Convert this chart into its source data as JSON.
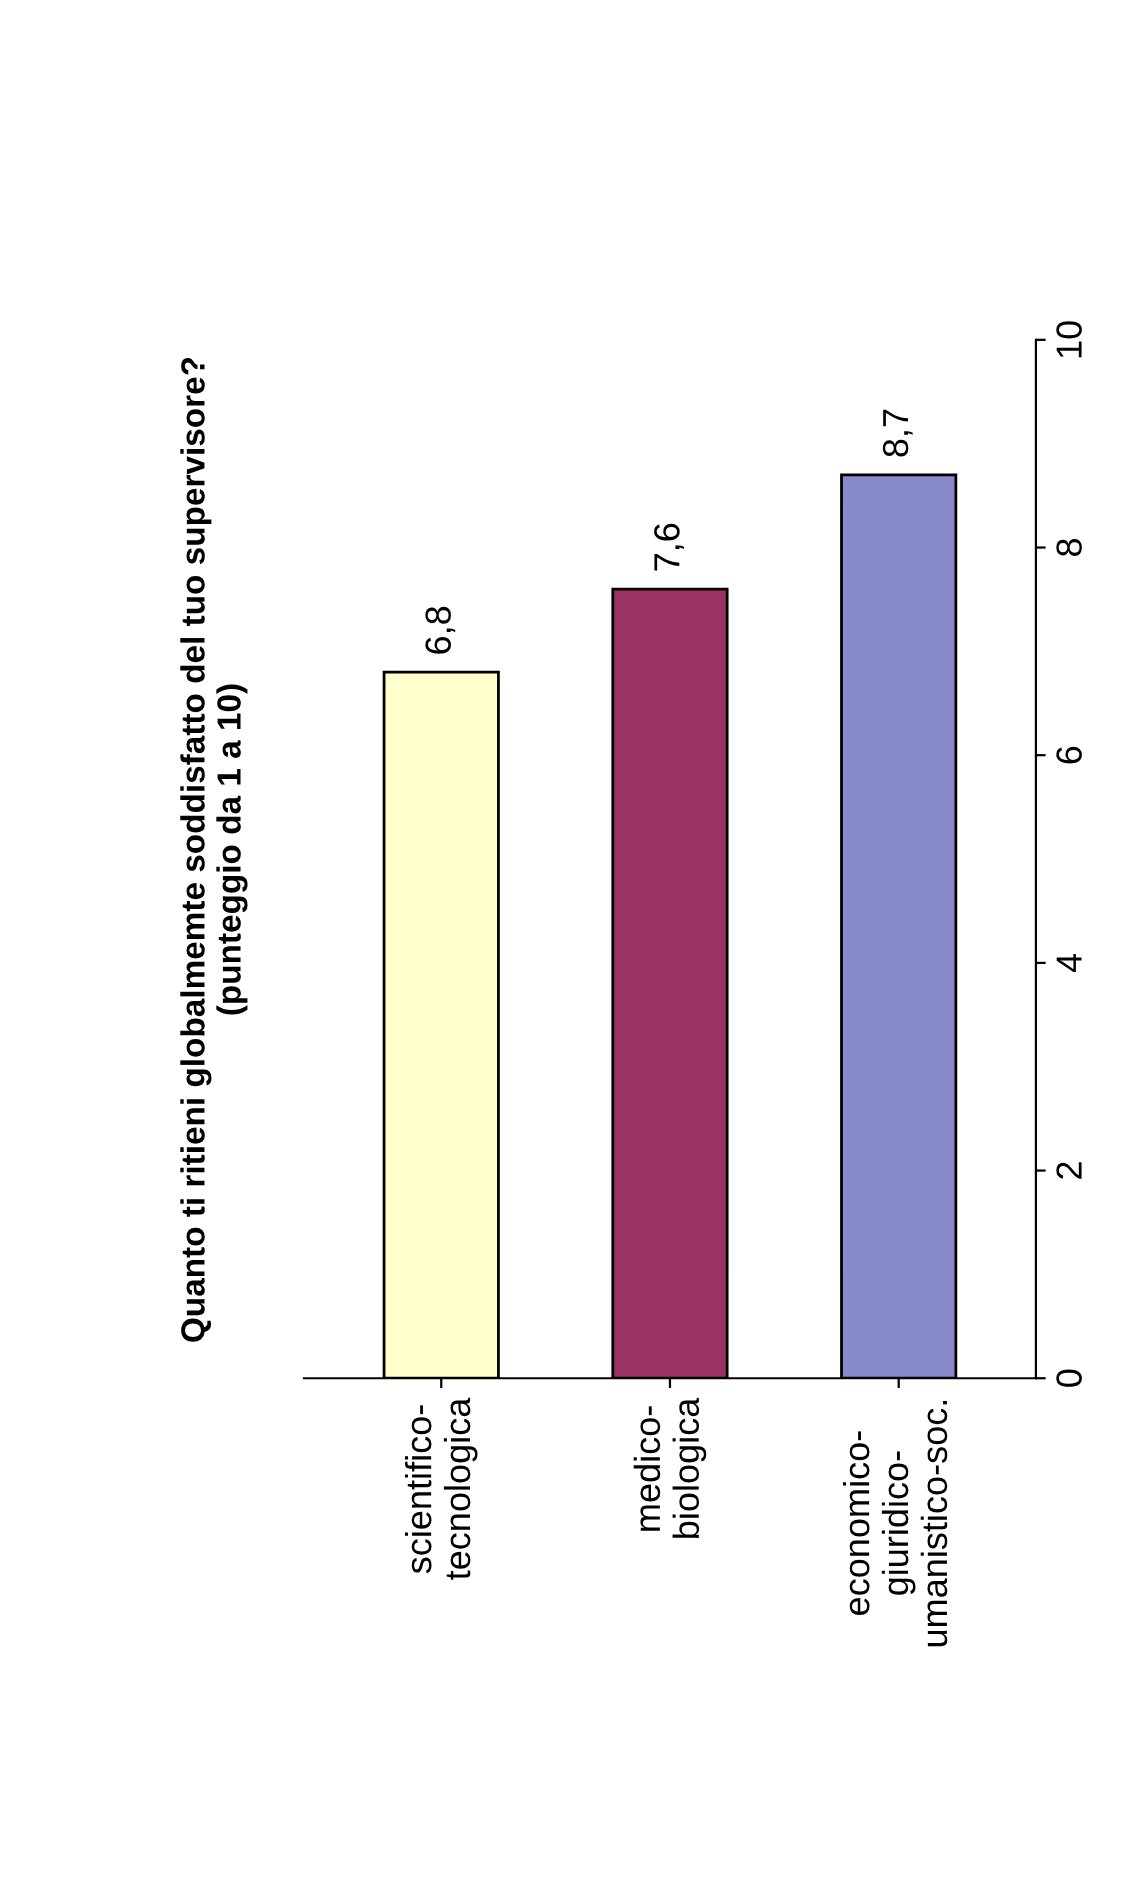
{
  "chart_data": {
    "type": "bar",
    "title": "Quanto ti ritieni globalmemte soddisfatto del tuo supervisore?\n(punteggio da 1 a 10)",
    "categories": [
      "scientifico-\ntecnologica",
      "medico-\nbiologica",
      "economico-\ngiuridico-\numanistico-soc."
    ],
    "values": [
      6.8,
      7.6,
      8.7
    ],
    "colors": [
      "#ffffcc",
      "#993366",
      "#8888cc"
    ],
    "value_labels": [
      "6,8",
      "7,6",
      "8,7"
    ],
    "ylim": [
      0,
      10
    ],
    "yticks": [
      0,
      2,
      4,
      6,
      8,
      10
    ],
    "grid": false,
    "legend": false
  }
}
